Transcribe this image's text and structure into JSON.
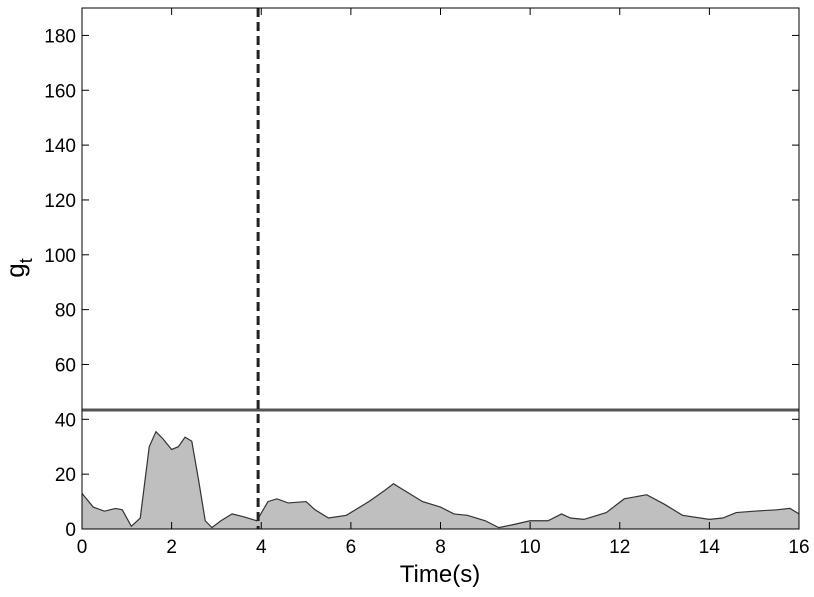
{
  "chart_data": {
    "type": "area",
    "xlabel": "Time(s)",
    "ylabel": "g",
    "ylabel_subscript": "t",
    "x": [
      0,
      0.25,
      0.5,
      0.75,
      0.9,
      1.1,
      1.3,
      1.5,
      1.65,
      1.8,
      2.0,
      2.15,
      2.3,
      2.45,
      2.6,
      2.75,
      2.9,
      3.1,
      3.35,
      3.6,
      3.9,
      4.15,
      4.35,
      4.6,
      5.0,
      5.2,
      5.5,
      5.9,
      6.4,
      6.75,
      6.95,
      7.2,
      7.6,
      8.0,
      8.3,
      8.6,
      9.0,
      9.3,
      9.6,
      10.0,
      10.4,
      10.7,
      10.9,
      11.2,
      11.7,
      12.1,
      12.6,
      13.0,
      13.4,
      14.0,
      14.3,
      14.6,
      15.0,
      15.5,
      15.8,
      16.0
    ],
    "values": [
      13,
      8,
      6.5,
      7.5,
      7,
      1,
      4,
      30,
      35.5,
      33,
      29,
      30,
      33.5,
      32,
      18,
      3,
      0.5,
      3,
      5.5,
      4.5,
      3,
      10,
      11,
      9.5,
      10,
      7,
      4,
      5,
      10,
      14,
      16.5,
      14,
      10,
      8,
      5.5,
      5,
      3,
      0.5,
      1.5,
      3,
      3,
      5.5,
      4,
      3.5,
      6,
      11,
      12.5,
      9,
      5,
      3.5,
      4,
      6,
      6.5,
      7,
      7.5,
      5.5
    ],
    "color": "#bfbfbf",
    "line_color": "#333333",
    "threshold": 43.4,
    "threshold_color": "#555555",
    "marker_x": 3.93,
    "marker_color": "#222222",
    "xlim": [
      0,
      16
    ],
    "xticks": [
      0,
      2,
      4,
      6,
      8,
      10,
      12,
      14,
      16
    ],
    "ylim": [
      0,
      190
    ],
    "yticks": [
      0,
      20,
      40,
      60,
      80,
      100,
      120,
      140,
      160,
      180
    ]
  }
}
